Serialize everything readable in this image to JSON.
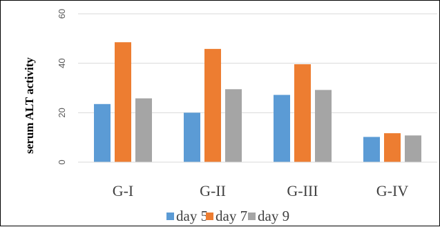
{
  "chart_data": {
    "type": "bar",
    "title": "",
    "xlabel": "",
    "ylabel": "serum ALT activity",
    "ylim": [
      0,
      60
    ],
    "yticks": [
      0,
      20,
      40,
      60
    ],
    "grid": true,
    "legend_position": "bottom",
    "categories": [
      "G-I",
      "G-II",
      "G-III",
      "G-IV"
    ],
    "series": [
      {
        "name": "day 5",
        "color": "#5b9bd5",
        "values": [
          23.5,
          20,
          27.2,
          10.2
        ]
      },
      {
        "name": "day 7",
        "color": "#ed7d31",
        "values": [
          48.5,
          45.8,
          39.6,
          11.7
        ]
      },
      {
        "name": "day 9",
        "color": "#a5a5a5",
        "values": [
          25.8,
          29.5,
          29.2,
          10.8
        ]
      }
    ]
  }
}
